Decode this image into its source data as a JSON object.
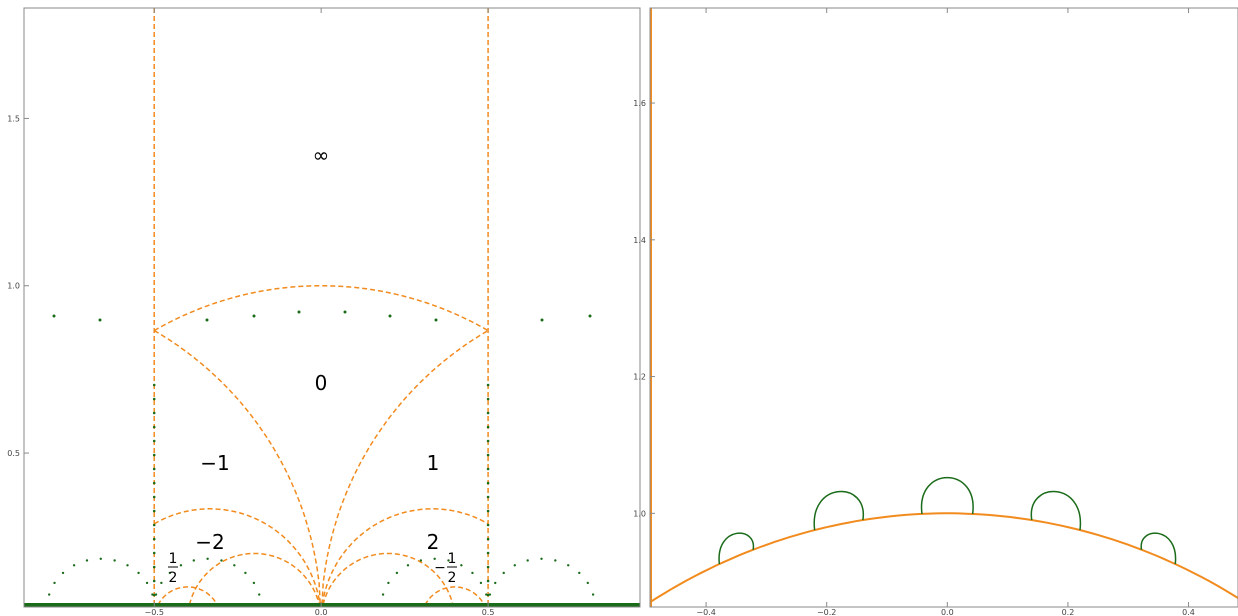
{
  "chart_data": [
    {
      "type": "line",
      "xlim": [
        -0.89,
        0.955
      ],
      "ylim": [
        0.04,
        1.83
      ],
      "xticks": [
        {
          "value": -0.5,
          "label": "−0.5"
        },
        {
          "value": 0,
          "label": "0.0"
        },
        0.5
      ],
      "yticks": [
        0.5,
        {
          "value": 1,
          "label": "1.0"
        },
        1.5
      ],
      "annotations": [
        "∞",
        "0",
        "−1",
        "1",
        "−2",
        "2"
      ],
      "fractions": [
        {
          "numerator": "1",
          "denominator": "2"
        },
        {
          "sign": "−",
          "numerator": "1",
          "denominator": "2"
        }
      ]
    },
    {
      "type": "line",
      "xlim": [
        -0.493,
        0.482
      ],
      "ylim": [
        0.863,
        1.739
      ],
      "xticks": [
        {
          "value": -0.4,
          "label": "−0.4"
        },
        {
          "value": -0.2,
          "label": "−0.2"
        },
        {
          "value": 0,
          "label": "0.0"
        },
        0.2,
        0.4
      ],
      "yticks": [
        {
          "value": 1,
          "label": "1.0"
        },
        1.2,
        1.4,
        1.6
      ]
    }
  ]
}
